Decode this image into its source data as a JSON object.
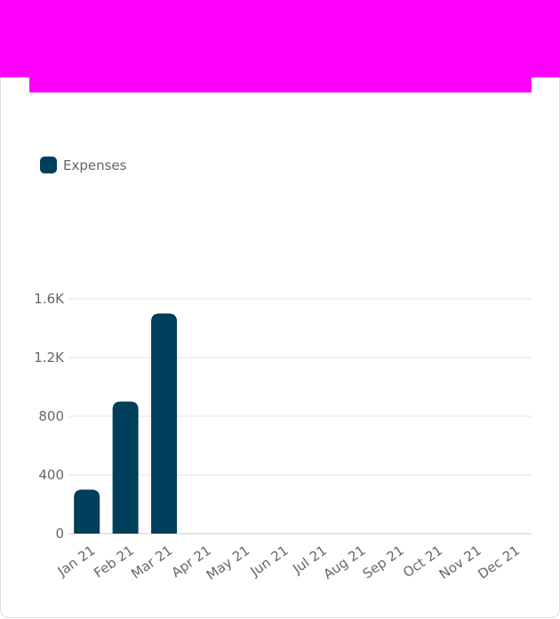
{
  "colors": {
    "banner": "#ff00ff",
    "bar": "#003f5c",
    "grid": "#e5e5e5",
    "text": "#666666"
  },
  "chart_data": {
    "type": "bar",
    "categories": [
      "Jan 21",
      "Feb 21",
      "Mar 21",
      "Apr 21",
      "May 21",
      "Jun 21",
      "Jul 21",
      "Aug 21",
      "Sep 21",
      "Oct 21",
      "Nov 21",
      "Dec 21"
    ],
    "series": [
      {
        "name": "Expenses",
        "values": [
          300,
          900,
          1500,
          0,
          0,
          0,
          0,
          0,
          0,
          0,
          0,
          0
        ]
      }
    ],
    "y_ticks": [
      0,
      400,
      800,
      1200,
      1600
    ],
    "y_tick_labels": [
      "0",
      "400",
      "800",
      "1.2K",
      "1.6K"
    ],
    "ylim": [
      0,
      1600
    ],
    "grid": true,
    "legend_position": "top-left"
  }
}
